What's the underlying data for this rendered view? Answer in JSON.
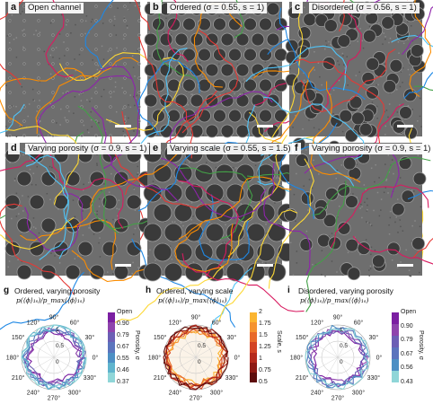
{
  "panels": [
    {
      "label": "a",
      "title": "Open channel"
    },
    {
      "label": "b",
      "title": "Ordered (σ = 0.55, s = 1)"
    },
    {
      "label": "c",
      "title": "Disordered (σ = 0.56, s = 1)"
    },
    {
      "label": "d",
      "title": "Varying porosity (σ = 0.9, s = 1)"
    },
    {
      "label": "e",
      "title": "Varying scale (σ = 0.55, s = 1.5)"
    },
    {
      "label": "f",
      "title": "Varying porosity (σ = 0.9, s = 1)"
    }
  ],
  "polars": [
    {
      "label": "g",
      "title": "Ordered, varying porosity",
      "subtitle": "p(⟨ϕ⟩₁ₛ)/p_max(⟨ϕ⟩₁ₛ)",
      "colorbar_title": "Porosity, σ",
      "colorbar_ticks": [
        "Open",
        "0.90",
        "0.79",
        "0.67",
        "0.55",
        "0.46",
        "0.37"
      ],
      "colors": [
        "#7b1fa2",
        "#8e44ad",
        "#6c5fb5",
        "#5b74bd",
        "#4d8fc4",
        "#5fb4cd",
        "#8fd6d8"
      ]
    },
    {
      "label": "h",
      "title": "Ordered, varying scale",
      "subtitle": "p(⟨ϕ⟩₁ₛ)/p_max(⟨ϕ⟩₁ₛ)",
      "colorbar_title": "Scale, s",
      "colorbar_ticks": [
        "2",
        "1.75",
        "1.5",
        "1.25",
        "1",
        "0.75",
        "0.5"
      ],
      "colors": [
        "#fbb531",
        "#f59330",
        "#e86a2a",
        "#d34424",
        "#b52a1c",
        "#8e1a14",
        "#5d0d0d"
      ]
    },
    {
      "label": "i",
      "title": "Disordered, varying porosity",
      "subtitle": "p(⟨ϕ⟩₁ₛ)/p_max(⟨ϕ⟩₁ₛ)",
      "colorbar_title": "Porosity, σ",
      "colorbar_ticks": [
        "Open",
        "0.90",
        "0.79",
        "0.67",
        "0.56",
        "0.43"
      ],
      "colors": [
        "#7b1fa2",
        "#8e44ad",
        "#6c5fb5",
        "#5b74bd",
        "#4d8fc4",
        "#8fd6d8"
      ]
    }
  ],
  "angles": [
    "90°",
    "60°",
    "30°",
    "0°",
    "330°",
    "300°",
    "270°",
    "240°",
    "210°",
    "180°",
    "150°",
    "120°"
  ],
  "radial_ticks": [
    "1",
    "0.5",
    "0"
  ],
  "track_colors": [
    "#e53935",
    "#fb8c00",
    "#fdd835",
    "#43a047",
    "#1e88e5",
    "#8e24aa",
    "#d81b60",
    "#4fc3f7"
  ]
}
